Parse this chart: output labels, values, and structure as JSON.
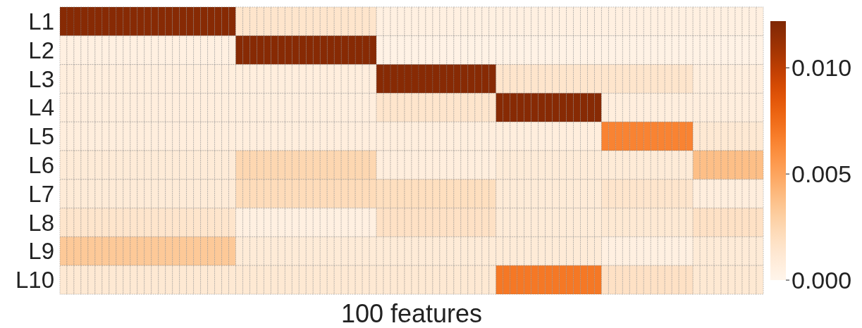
{
  "chart_data": {
    "type": "heatmap",
    "xlabel": "100 features",
    "categories": [
      null,
      null,
      null,
      null,
      null,
      null,
      null,
      null,
      null,
      null,
      null,
      null,
      null,
      null,
      null,
      null,
      null,
      null,
      null,
      null,
      null,
      null,
      null,
      null,
      null,
      null,
      null,
      null,
      null,
      null,
      null,
      null,
      null,
      null,
      null,
      null,
      null,
      null,
      null,
      null,
      null,
      null,
      null,
      null,
      null,
      null,
      null,
      null,
      null,
      null,
      null,
      null,
      null,
      null,
      null,
      null,
      null,
      null,
      null,
      null,
      null,
      null,
      null,
      null,
      null,
      null,
      null,
      null,
      null,
      null,
      null,
      null,
      null,
      null,
      null,
      null,
      null,
      null,
      null,
      null,
      null,
      null,
      null,
      null,
      null,
      null,
      null,
      null,
      null,
      null,
      null,
      null,
      null,
      null,
      null,
      null,
      null,
      null,
      null,
      null
    ],
    "y_categories": [
      "L1",
      "L2",
      "L3",
      "L4",
      "L5",
      "L6",
      "L7",
      "L8",
      "L9",
      "L10"
    ],
    "cells": [
      [
        0.0119,
        0.0119,
        0.0119,
        0.0119,
        0.0119,
        0.0119,
        0.0119,
        0.0119,
        0.0119,
        0.0119,
        0.0119,
        0.0119,
        0.0119,
        0.0119,
        0.0119,
        0.0119,
        0.0119,
        0.0119,
        0.0119,
        0.0119,
        0.0119,
        0.0119,
        0.0119,
        0.0119,
        0.0119,
        0.0015,
        0.0015,
        0.0015,
        0.0015,
        0.0015,
        0.0015,
        0.0015,
        0.0015,
        0.0015,
        0.0015,
        0.0015,
        0.0015,
        0.0015,
        0.0015,
        0.0015,
        0.0015,
        0.0015,
        0.0015,
        0.0015,
        0.0015,
        0.0005,
        0.0005,
        0.0005,
        0.0005,
        0.0005,
        0.0005,
        0.0005,
        0.0005,
        0.0005,
        0.0005,
        0.0005,
        0.0005,
        0.0005,
        0.0005,
        0.0005,
        0.0005,
        0.0005,
        0.0005,
        0.0005,
        0.0005,
        0.0005,
        0.0005,
        0.0005,
        0.0005,
        0.0005,
        0.0005,
        0.0005,
        0.0005,
        0.0005,
        0.0005,
        0.0005,
        0.0005,
        0.0005,
        0.0005,
        0.0005,
        0.0005,
        0.0005,
        0.0005,
        0.0005,
        0.0005,
        0.0005,
        0.0005,
        0.0005,
        0.0005,
        0.0005,
        0.0005,
        0.0005,
        0.0005,
        0.0005,
        0.0005,
        0.0005,
        0.0005,
        0.0005,
        0.0005,
        0.0005
      ],
      [
        0.0005,
        0.0005,
        0.0005,
        0.0005,
        0.0005,
        0.0005,
        0.0005,
        0.0005,
        0.0005,
        0.0005,
        0.0005,
        0.0005,
        0.0005,
        0.0005,
        0.0005,
        0.0005,
        0.0005,
        0.0005,
        0.0005,
        0.0005,
        0.0005,
        0.0005,
        0.0005,
        0.0005,
        0.0005,
        0.0119,
        0.0119,
        0.0119,
        0.0119,
        0.0119,
        0.0119,
        0.0119,
        0.0119,
        0.0119,
        0.0119,
        0.0119,
        0.0119,
        0.0119,
        0.0119,
        0.0119,
        0.0119,
        0.0119,
        0.0119,
        0.0119,
        0.0119,
        0.0003,
        0.0003,
        0.0003,
        0.0003,
        0.0003,
        0.0003,
        0.0003,
        0.0003,
        0.0003,
        0.0003,
        0.0003,
        0.0003,
        0.0003,
        0.0003,
        0.0003,
        0.0003,
        0.0003,
        0.0003,
        0.0003,
        0.0003,
        0.0003,
        0.0003,
        0.0003,
        0.0003,
        0.0003,
        0.0003,
        0.0003,
        0.0003,
        0.0003,
        0.0003,
        0.0003,
        0.0003,
        0.0003,
        0.0003,
        0.0003,
        0.0003,
        0.0003,
        0.0003,
        0.0003,
        0.0003,
        0.0003,
        0.0003,
        0.0003,
        0.0003,
        0.0003,
        0.0003,
        0.0003,
        0.0003,
        0.0003,
        0.0003,
        0.0003,
        0.0003,
        0.0003,
        0.0003,
        0.0003
      ],
      [
        0.0007,
        0.0007,
        0.0007,
        0.0007,
        0.0007,
        0.0007,
        0.0007,
        0.0007,
        0.0007,
        0.0007,
        0.0007,
        0.0007,
        0.0007,
        0.0007,
        0.0007,
        0.0007,
        0.0007,
        0.0007,
        0.0007,
        0.0007,
        0.0007,
        0.0007,
        0.0007,
        0.0007,
        0.0007,
        0.0007,
        0.0007,
        0.0007,
        0.0007,
        0.0007,
        0.0007,
        0.0007,
        0.0007,
        0.0007,
        0.0007,
        0.0007,
        0.0007,
        0.0007,
        0.0007,
        0.0007,
        0.0007,
        0.0007,
        0.0007,
        0.0007,
        0.0007,
        0.0119,
        0.0119,
        0.0119,
        0.0119,
        0.0119,
        0.0119,
        0.0119,
        0.0119,
        0.0119,
        0.0119,
        0.0119,
        0.0119,
        0.0119,
        0.0119,
        0.0119,
        0.0119,
        0.0119,
        0.0015,
        0.0015,
        0.0015,
        0.0015,
        0.0015,
        0.0015,
        0.0015,
        0.0015,
        0.0015,
        0.0015,
        0.0015,
        0.0015,
        0.0015,
        0.0015,
        0.0015,
        0.0015,
        0.0015,
        0.0015,
        0.0015,
        0.0015,
        0.0015,
        0.0015,
        0.0015,
        0.0015,
        0.0015,
        0.0015,
        0.0015,
        0.0015,
        0.0007,
        0.0007,
        0.0007,
        0.0007,
        0.0007,
        0.0007,
        0.0007,
        0.0007,
        0.0007,
        0.0007
      ],
      [
        0.0007,
        0.0007,
        0.0007,
        0.0007,
        0.0007,
        0.0007,
        0.0007,
        0.0007,
        0.0007,
        0.0007,
        0.0007,
        0.0007,
        0.0007,
        0.0007,
        0.0007,
        0.0007,
        0.0007,
        0.0007,
        0.0007,
        0.0007,
        0.0007,
        0.0007,
        0.0007,
        0.0007,
        0.0007,
        0.0007,
        0.0007,
        0.0007,
        0.0007,
        0.0007,
        0.0007,
        0.0007,
        0.0007,
        0.0007,
        0.0007,
        0.0007,
        0.0007,
        0.0007,
        0.0007,
        0.0007,
        0.0007,
        0.0007,
        0.0007,
        0.0007,
        0.0007,
        0.0015,
        0.0015,
        0.0015,
        0.0015,
        0.0015,
        0.0015,
        0.0015,
        0.0015,
        0.0015,
        0.0015,
        0.0015,
        0.0015,
        0.0015,
        0.0015,
        0.0015,
        0.0015,
        0.0015,
        0.0119,
        0.0119,
        0.0119,
        0.0119,
        0.0119,
        0.0119,
        0.0119,
        0.0119,
        0.0119,
        0.0119,
        0.0119,
        0.0119,
        0.0119,
        0.0119,
        0.0119,
        0.0007,
        0.0007,
        0.0007,
        0.0007,
        0.0007,
        0.0007,
        0.0007,
        0.0007,
        0.0007,
        0.0007,
        0.0007,
        0.0007,
        0.0007,
        0.0007,
        0.0007,
        0.0007,
        0.0007,
        0.0007,
        0.0007,
        0.0007,
        0.0007,
        0.0007,
        0.0007
      ],
      [
        0.0007,
        0.0007,
        0.0007,
        0.0007,
        0.0007,
        0.0007,
        0.0007,
        0.0007,
        0.0007,
        0.0007,
        0.0007,
        0.0007,
        0.0007,
        0.0007,
        0.0007,
        0.0007,
        0.0007,
        0.0007,
        0.0007,
        0.0007,
        0.0007,
        0.0007,
        0.0007,
        0.0007,
        0.0007,
        0.0007,
        0.0007,
        0.0007,
        0.0007,
        0.0007,
        0.0007,
        0.0007,
        0.0007,
        0.0007,
        0.0007,
        0.0007,
        0.0007,
        0.0007,
        0.0007,
        0.0007,
        0.0007,
        0.0007,
        0.0007,
        0.0007,
        0.0007,
        0.0007,
        0.0007,
        0.0007,
        0.0007,
        0.0007,
        0.0007,
        0.0007,
        0.0007,
        0.0007,
        0.0007,
        0.0007,
        0.0007,
        0.0007,
        0.0007,
        0.0007,
        0.0007,
        0.0007,
        0.0007,
        0.0007,
        0.0007,
        0.0007,
        0.0007,
        0.0007,
        0.0007,
        0.0007,
        0.0007,
        0.0007,
        0.0007,
        0.0007,
        0.0007,
        0.0007,
        0.0007,
        0.0065,
        0.0065,
        0.0065,
        0.0065,
        0.0065,
        0.0065,
        0.0065,
        0.0065,
        0.0065,
        0.0065,
        0.0065,
        0.0065,
        0.0065,
        0.0012,
        0.0012,
        0.0012,
        0.0012,
        0.0012,
        0.0012,
        0.0012,
        0.0012,
        0.0012,
        0.0012
      ],
      [
        0.001,
        0.001,
        0.001,
        0.001,
        0.001,
        0.001,
        0.001,
        0.001,
        0.001,
        0.001,
        0.001,
        0.001,
        0.001,
        0.001,
        0.001,
        0.001,
        0.001,
        0.001,
        0.001,
        0.001,
        0.001,
        0.001,
        0.001,
        0.001,
        0.001,
        0.0025,
        0.0025,
        0.0025,
        0.0025,
        0.0025,
        0.0025,
        0.0025,
        0.0025,
        0.0025,
        0.0025,
        0.0025,
        0.0025,
        0.0025,
        0.0025,
        0.0025,
        0.0025,
        0.0025,
        0.0025,
        0.0025,
        0.0025,
        0.0007,
        0.0007,
        0.0007,
        0.0007,
        0.0007,
        0.0007,
        0.0007,
        0.0007,
        0.0007,
        0.0007,
        0.0007,
        0.0007,
        0.0007,
        0.0007,
        0.0007,
        0.0007,
        0.0007,
        0.001,
        0.001,
        0.001,
        0.001,
        0.001,
        0.001,
        0.001,
        0.001,
        0.001,
        0.001,
        0.001,
        0.001,
        0.001,
        0.001,
        0.001,
        0.001,
        0.001,
        0.001,
        0.001,
        0.001,
        0.001,
        0.001,
        0.001,
        0.001,
        0.001,
        0.001,
        0.001,
        0.001,
        0.0038,
        0.0038,
        0.0038,
        0.0038,
        0.0038,
        0.0038,
        0.0038,
        0.0038,
        0.0038,
        0.0038
      ],
      [
        0.001,
        0.001,
        0.001,
        0.001,
        0.001,
        0.001,
        0.001,
        0.001,
        0.001,
        0.001,
        0.001,
        0.001,
        0.001,
        0.001,
        0.001,
        0.001,
        0.001,
        0.001,
        0.001,
        0.001,
        0.001,
        0.001,
        0.001,
        0.001,
        0.001,
        0.0022,
        0.0022,
        0.0022,
        0.0022,
        0.0022,
        0.0022,
        0.0022,
        0.0022,
        0.0022,
        0.0022,
        0.0022,
        0.0022,
        0.0022,
        0.0022,
        0.0022,
        0.0022,
        0.0022,
        0.0022,
        0.0022,
        0.0022,
        0.002,
        0.002,
        0.002,
        0.002,
        0.002,
        0.002,
        0.002,
        0.002,
        0.002,
        0.002,
        0.002,
        0.002,
        0.002,
        0.002,
        0.002,
        0.002,
        0.002,
        0.001,
        0.001,
        0.001,
        0.001,
        0.001,
        0.001,
        0.001,
        0.001,
        0.001,
        0.001,
        0.001,
        0.001,
        0.001,
        0.001,
        0.001,
        0.0015,
        0.0015,
        0.0015,
        0.0015,
        0.0015,
        0.0015,
        0.0015,
        0.0015,
        0.0015,
        0.0015,
        0.0015,
        0.0015,
        0.0015,
        0.0007,
        0.0007,
        0.0007,
        0.0007,
        0.0007,
        0.0007,
        0.0007,
        0.0007,
        0.0007,
        0.0007
      ],
      [
        0.0015,
        0.0015,
        0.0015,
        0.0015,
        0.0015,
        0.0015,
        0.0015,
        0.0015,
        0.0015,
        0.0015,
        0.0015,
        0.0015,
        0.0015,
        0.0015,
        0.0015,
        0.0015,
        0.0015,
        0.0015,
        0.0015,
        0.0015,
        0.0015,
        0.0015,
        0.0015,
        0.0015,
        0.0015,
        0.0005,
        0.0005,
        0.0005,
        0.0005,
        0.0005,
        0.0005,
        0.0005,
        0.0005,
        0.0005,
        0.0005,
        0.0005,
        0.0005,
        0.0005,
        0.0005,
        0.0005,
        0.0005,
        0.0005,
        0.0005,
        0.0005,
        0.0005,
        0.0018,
        0.0018,
        0.0018,
        0.0018,
        0.0018,
        0.0018,
        0.0018,
        0.0018,
        0.0018,
        0.0018,
        0.0018,
        0.0018,
        0.0018,
        0.0018,
        0.0018,
        0.0018,
        0.0018,
        0.001,
        0.001,
        0.001,
        0.001,
        0.001,
        0.001,
        0.001,
        0.001,
        0.001,
        0.001,
        0.001,
        0.001,
        0.001,
        0.001,
        0.001,
        0.0012,
        0.0012,
        0.0012,
        0.0012,
        0.0012,
        0.0012,
        0.0012,
        0.0012,
        0.0012,
        0.0012,
        0.0012,
        0.0012,
        0.0012,
        0.0018,
        0.0018,
        0.0018,
        0.0018,
        0.0018,
        0.0018,
        0.0018,
        0.0018,
        0.0018,
        0.0018
      ],
      [
        0.0033,
        0.0033,
        0.0033,
        0.0033,
        0.0033,
        0.0033,
        0.0033,
        0.0033,
        0.0033,
        0.0033,
        0.0033,
        0.0033,
        0.0033,
        0.0033,
        0.0033,
        0.0033,
        0.0033,
        0.0033,
        0.0033,
        0.0033,
        0.0033,
        0.0033,
        0.0033,
        0.0033,
        0.0033,
        0.001,
        0.001,
        0.001,
        0.001,
        0.001,
        0.001,
        0.001,
        0.001,
        0.001,
        0.001,
        0.001,
        0.001,
        0.001,
        0.001,
        0.001,
        0.001,
        0.001,
        0.001,
        0.001,
        0.001,
        0.001,
        0.001,
        0.001,
        0.001,
        0.001,
        0.001,
        0.001,
        0.001,
        0.001,
        0.001,
        0.001,
        0.001,
        0.001,
        0.001,
        0.001,
        0.001,
        0.001,
        0.001,
        0.001,
        0.001,
        0.001,
        0.001,
        0.001,
        0.001,
        0.001,
        0.001,
        0.001,
        0.001,
        0.001,
        0.001,
        0.001,
        0.001,
        0.0005,
        0.0005,
        0.0005,
        0.0005,
        0.0005,
        0.0005,
        0.0005,
        0.0005,
        0.0005,
        0.0005,
        0.0005,
        0.0005,
        0.0005,
        0.001,
        0.001,
        0.001,
        0.001,
        0.001,
        0.001,
        0.001,
        0.001,
        0.001,
        0.001
      ],
      [
        0.0012,
        0.0012,
        0.0012,
        0.0012,
        0.0012,
        0.0012,
        0.0012,
        0.0012,
        0.0012,
        0.0012,
        0.0012,
        0.0012,
        0.0012,
        0.0012,
        0.0012,
        0.0012,
        0.0012,
        0.0012,
        0.0012,
        0.0012,
        0.0012,
        0.0012,
        0.0012,
        0.0012,
        0.0012,
        0.0012,
        0.0012,
        0.0012,
        0.0012,
        0.0012,
        0.0012,
        0.0012,
        0.0012,
        0.0012,
        0.0012,
        0.0012,
        0.0012,
        0.0012,
        0.0012,
        0.0012,
        0.0012,
        0.0012,
        0.0012,
        0.0012,
        0.0012,
        0.0012,
        0.0012,
        0.0012,
        0.0012,
        0.0012,
        0.0012,
        0.0012,
        0.0012,
        0.0012,
        0.0012,
        0.0012,
        0.0012,
        0.0012,
        0.0012,
        0.0012,
        0.0012,
        0.0012,
        0.007,
        0.007,
        0.007,
        0.007,
        0.007,
        0.007,
        0.007,
        0.007,
        0.007,
        0.007,
        0.007,
        0.007,
        0.007,
        0.007,
        0.007,
        0.0018,
        0.0018,
        0.0018,
        0.0018,
        0.0018,
        0.0018,
        0.0018,
        0.0018,
        0.0018,
        0.0018,
        0.0018,
        0.0018,
        0.0018,
        0.0012,
        0.0012,
        0.0012,
        0.0012,
        0.0012,
        0.0012,
        0.0012,
        0.0012,
        0.0012,
        0.0012
      ]
    ],
    "clim": [
      0,
      0.0122
    ],
    "cticks": [
      {
        "value": 0,
        "label": "0.000"
      },
      {
        "value": 0.005,
        "label": "0.005"
      },
      {
        "value": 0.01,
        "label": "0.010"
      }
    ]
  }
}
